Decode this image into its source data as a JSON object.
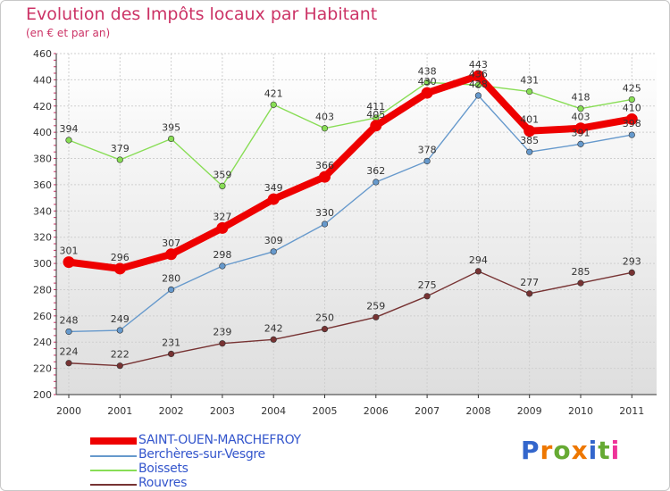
{
  "title": "Evolution des Impôts locaux par Habitant",
  "subtitle": "(en € et par an)",
  "chart_data": {
    "type": "line",
    "title": "Evolution des Impôts locaux par Habitant",
    "subtitle": "(en € et par an)",
    "xlabel": "",
    "ylabel": "",
    "categories": [
      "2000",
      "2001",
      "2002",
      "2003",
      "2004",
      "2005",
      "2006",
      "2007",
      "2008",
      "2009",
      "2010",
      "2011"
    ],
    "ylim": [
      200,
      460
    ],
    "yticks": [
      200,
      220,
      240,
      260,
      280,
      300,
      320,
      340,
      360,
      380,
      400,
      420,
      440,
      460
    ],
    "grid": true,
    "legend": "bottom-left",
    "series": [
      {
        "name": "SAINT-OUEN-MARCHEFROY",
        "color": "#ee0000",
        "values": [
          301,
          296,
          307,
          327,
          349,
          366,
          405,
          430,
          443,
          401,
          403,
          410
        ]
      },
      {
        "name": "Berchères-sur-Vesgre",
        "color": "#6699cc",
        "values": [
          248,
          249,
          280,
          298,
          309,
          330,
          362,
          378,
          428,
          385,
          391,
          398
        ]
      },
      {
        "name": "Boissets",
        "color": "#88dd55",
        "values": [
          394,
          379,
          395,
          359,
          421,
          403,
          411,
          438,
          436,
          431,
          418,
          425
        ]
      },
      {
        "name": "Rouvres",
        "color": "#773333",
        "values": [
          224,
          222,
          231,
          239,
          242,
          250,
          259,
          275,
          294,
          277,
          285,
          293
        ]
      }
    ],
    "data_labels": [
      [
        "301",
        "296",
        "307",
        "327",
        "349",
        "366",
        "405",
        "430",
        "443",
        "401",
        "403",
        "410"
      ],
      [
        "248",
        "249",
        "280",
        "298",
        "309",
        "330",
        "362",
        "378",
        "428",
        "385",
        "391",
        "398"
      ],
      [
        "394",
        "379",
        "395",
        "359",
        "421",
        "403",
        "411",
        "438",
        "436",
        "431",
        "418",
        "425"
      ],
      [
        "224",
        "222",
        "231",
        "239",
        "242",
        "250",
        "259",
        "275",
        "294",
        "277",
        "285",
        "293"
      ]
    ]
  },
  "logo": {
    "letters": [
      "P",
      "r",
      "o",
      "x",
      "i",
      "t",
      "i"
    ],
    "colors": [
      "#3366cc",
      "#ee7700",
      "#66aa33",
      "#ee7700",
      "#3366cc",
      "#66aa33",
      "#ee3399"
    ]
  }
}
